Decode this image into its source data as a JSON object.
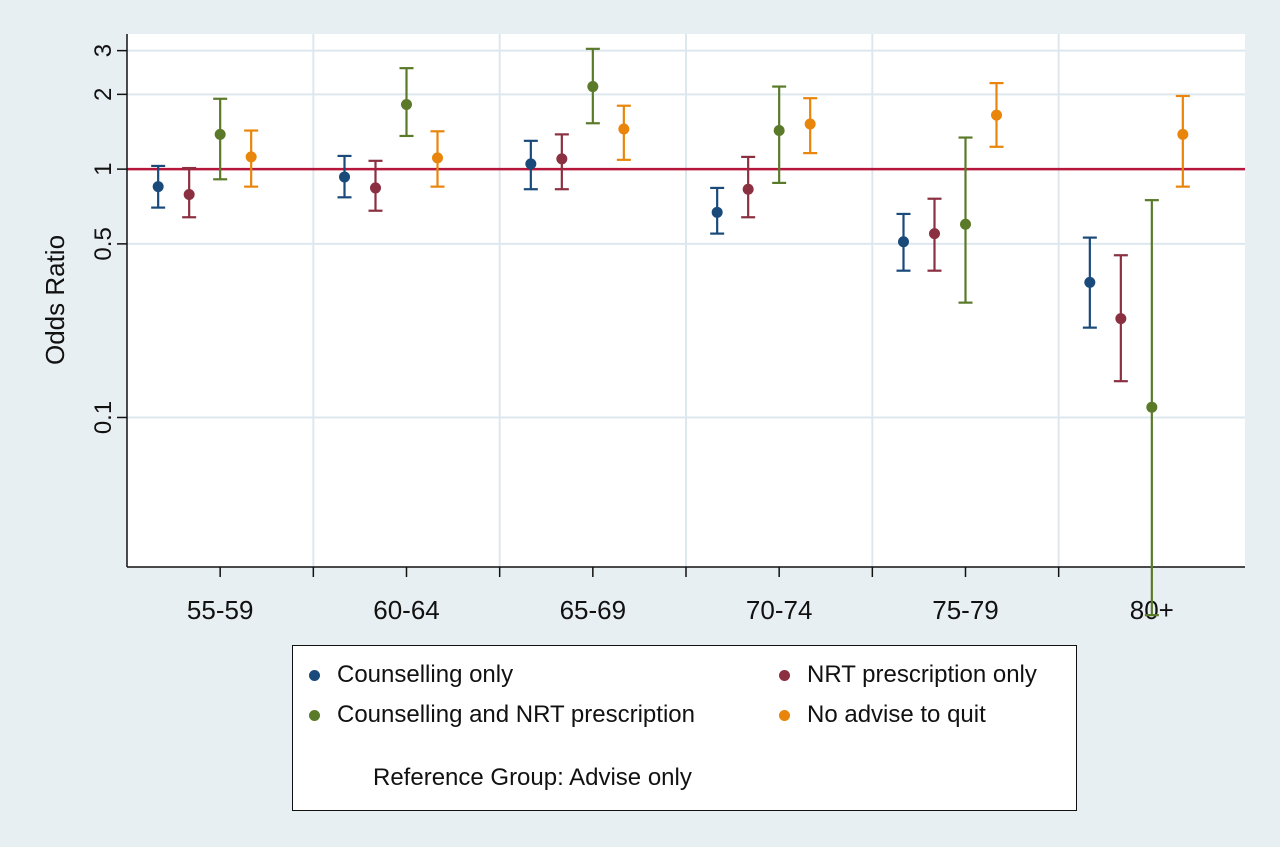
{
  "chart_data": {
    "type": "scatter",
    "subtype": "point-estimate-with-confidence-intervals",
    "y_scale": "log",
    "ylabel": "Odds Ratio",
    "xlabel": "",
    "title": "",
    "ylim": [
      0.025,
      3.5
    ],
    "y_ticks": [
      0.1,
      0.5,
      1,
      2,
      3
    ],
    "y_tick_labels": [
      "0.1",
      "0.5",
      "1",
      "2",
      "3"
    ],
    "reference_line": 1,
    "reference_line_color": "#b5163a",
    "grid": true,
    "categories": [
      "55-59",
      "60-64",
      "65-69",
      "70-74",
      "75-79",
      "80+"
    ],
    "series": [
      {
        "name": "Counselling only",
        "color": "#1a4a7a",
        "values": [
          0.85,
          0.93,
          1.05,
          0.67,
          0.51,
          0.35
        ],
        "ci_low": [
          0.7,
          0.77,
          0.83,
          0.55,
          0.39,
          0.23
        ],
        "ci_high": [
          1.03,
          1.13,
          1.3,
          0.84,
          0.66,
          0.53
        ]
      },
      {
        "name": "NRT prescription only",
        "color": "#8b3040",
        "values": [
          0.79,
          0.84,
          1.1,
          0.83,
          0.55,
          0.25
        ],
        "ci_low": [
          0.64,
          0.68,
          0.83,
          0.64,
          0.39,
          0.14
        ],
        "ci_high": [
          1.01,
          1.08,
          1.38,
          1.12,
          0.76,
          0.45
        ]
      },
      {
        "name": "Counselling and NRT prescription",
        "color": "#5a7a2a",
        "values": [
          1.38,
          1.82,
          2.15,
          1.43,
          0.6,
          0.11
        ],
        "ci_low": [
          0.91,
          1.36,
          1.53,
          0.88,
          0.29,
          0.016
        ],
        "ci_high": [
          1.92,
          2.55,
          3.05,
          2.15,
          1.34,
          0.75
        ]
      },
      {
        "name": "No advise to quit",
        "color": "#e8850a",
        "values": [
          1.12,
          1.11,
          1.45,
          1.52,
          1.65,
          1.38
        ],
        "ci_low": [
          0.85,
          0.85,
          1.09,
          1.16,
          1.23,
          0.85
        ],
        "ci_high": [
          1.43,
          1.42,
          1.8,
          1.93,
          2.22,
          1.97
        ]
      }
    ],
    "legend_note": "Reference Group: Advise only",
    "legend_position": "bottom"
  }
}
